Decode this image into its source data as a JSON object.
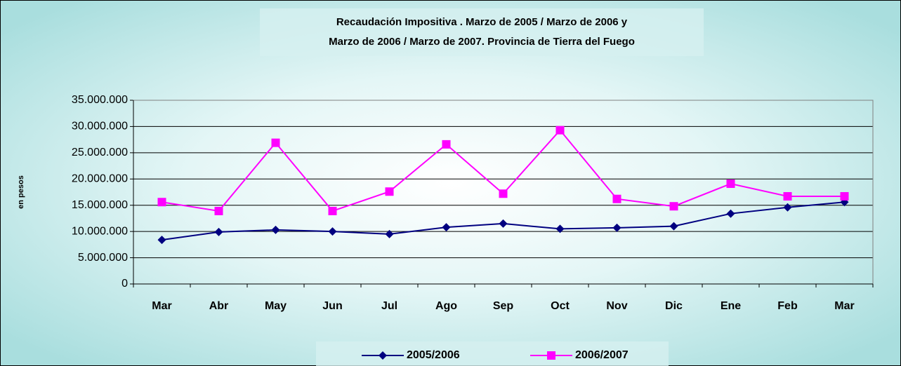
{
  "chart_data": {
    "type": "line",
    "title": [
      "Recaudación Impositiva . Marzo de 2005 / Marzo de 2006 y",
      "Marzo de 2006 / Marzo de 2007. Provincia de Tierra del Fuego"
    ],
    "y_label": "en pesos",
    "categories": [
      "Mar",
      "Abr",
      "May",
      "Jun",
      "Jul",
      "Ago",
      "Sep",
      "Oct",
      "Nov",
      "Dic",
      "Ene",
      "Feb",
      "Mar"
    ],
    "series": [
      {
        "name": "2005/2006",
        "color": "#000080",
        "marker": "diamond",
        "values": [
          8400000,
          9900000,
          10300000,
          10000000,
          9500000,
          10800000,
          11500000,
          10500000,
          10700000,
          11000000,
          13400000,
          14600000,
          15600000
        ]
      },
      {
        "name": "2006/2007",
        "color": "#ff00ff",
        "marker": "square",
        "values": [
          15600000,
          13900000,
          26900000,
          13900000,
          17600000,
          26600000,
          17200000,
          29300000,
          16200000,
          14800000,
          19100000,
          16700000,
          16700000
        ]
      }
    ],
    "ylim": [
      0,
      35000000
    ],
    "yticks": [
      0,
      {
        "value": 5000000,
        "label": "5.000.000"
      },
      {
        "value": 10000000,
        "label": "10.000.000"
      },
      {
        "value": 15000000,
        "label": "15.000.000"
      },
      {
        "value": 20000000,
        "label": "20.000.000"
      },
      {
        "value": 25000000,
        "label": "25.000.000"
      },
      {
        "value": 30000000,
        "label": "30.000.000"
      },
      {
        "value": 35000000,
        "label": "35.000.000"
      }
    ],
    "grid": true
  }
}
